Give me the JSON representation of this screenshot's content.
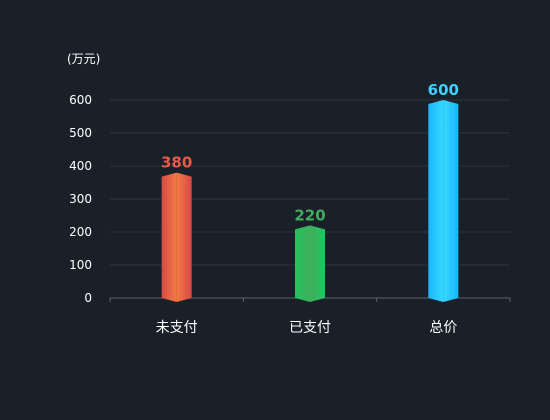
{
  "chart_data": {
    "type": "bar",
    "unit": "(万元)",
    "categories": [
      "未支付",
      "已支付",
      "总价"
    ],
    "values": [
      380,
      220,
      600
    ],
    "colors": [
      {
        "label": "#e8594a",
        "left": "#d84848",
        "right": "#f37a44"
      },
      {
        "label": "#3fae5c",
        "left": "#22c45e",
        "right": "#3fae5c"
      },
      {
        "label": "#3fd0ff",
        "left": "#19b6ff",
        "right": "#36d9ff"
      }
    ],
    "ylim": [
      0,
      600
    ],
    "yticks": [
      0,
      100,
      200,
      300,
      400,
      500,
      600
    ],
    "grid": true
  }
}
